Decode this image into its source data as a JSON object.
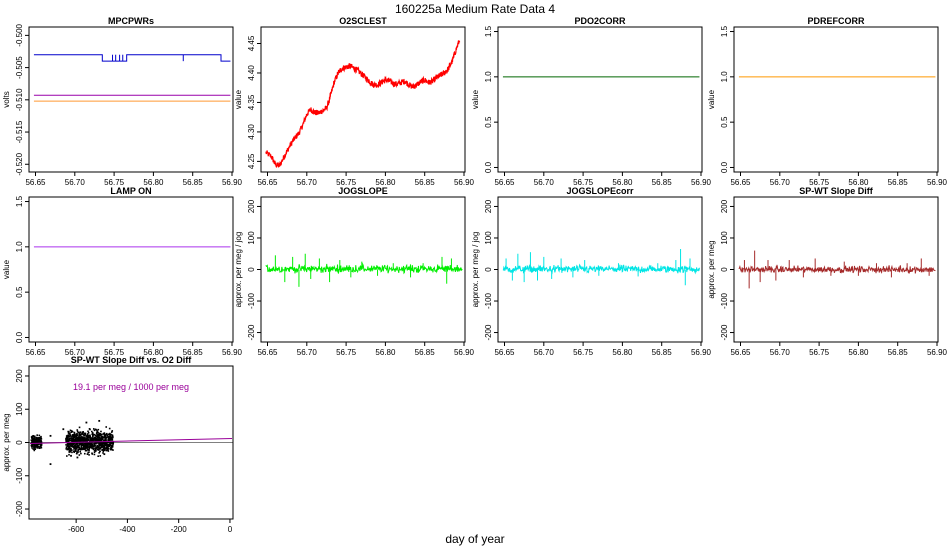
{
  "figure": {
    "title": "160225a   Medium Rate Data 4",
    "xlabel": "day of year"
  },
  "chart_data": [
    {
      "type": "line",
      "title": "MPCPWRs",
      "ylabel": "volts",
      "xlim": [
        56.643,
        56.9
      ],
      "ylim": [
        -0.5212,
        -0.4987
      ],
      "xticks": [
        "56.65",
        "56.70",
        "56.75",
        "56.80",
        "56.85",
        "56.90"
      ],
      "yticks": [
        "-0.500",
        "-0.505",
        "-0.510",
        "-0.515",
        "-0.520"
      ],
      "series": [
        {
          "color": "#0000cc",
          "kind": "step",
          "x": [
            56.648,
            56.735,
            56.735,
            56.766,
            56.766,
            56.886,
            56.886,
            56.898
          ],
          "y": [
            -0.503,
            -0.503,
            -0.504,
            -0.504,
            -0.503,
            -0.503,
            -0.504,
            -0.504
          ],
          "spikes_x": [
            56.748,
            56.752,
            56.757,
            56.761,
            56.838
          ]
        },
        {
          "color": "#9900aa",
          "x": [
            56.648,
            56.898
          ],
          "y": [
            -0.5093,
            -0.5093
          ]
        },
        {
          "color": "#ff9933",
          "x": [
            56.648,
            56.898
          ],
          "y": [
            -0.5102,
            -0.5102
          ]
        }
      ]
    },
    {
      "type": "line",
      "title": "O2SCLEST",
      "ylabel": "value",
      "xlim": [
        56.643,
        56.9
      ],
      "ylim": [
        4.232,
        4.478
      ],
      "xticks": [
        "56.65",
        "56.70",
        "56.75",
        "56.80",
        "56.85",
        "56.90"
      ],
      "yticks": [
        "4.25",
        "4.30",
        "4.35",
        "4.40",
        "4.45"
      ],
      "series": [
        {
          "color": "#ff0000",
          "kind": "noisy",
          "noise": 0.005,
          "x": [
            56.648,
            56.655,
            56.66,
            56.665,
            56.67,
            56.675,
            56.68,
            56.685,
            56.69,
            56.695,
            56.7,
            56.705,
            56.71,
            56.715,
            56.72,
            56.725,
            56.73,
            56.735,
            56.74,
            56.745,
            56.75,
            56.755,
            56.76,
            56.765,
            56.77,
            56.775,
            56.78,
            56.785,
            56.79,
            56.795,
            56.8,
            56.805,
            56.81,
            56.815,
            56.82,
            56.825,
            56.83,
            56.835,
            56.84,
            56.845,
            56.85,
            56.855,
            56.86,
            56.865,
            56.87,
            56.875,
            56.88,
            56.885,
            56.89,
            56.895
          ],
          "y": [
            4.265,
            4.258,
            4.245,
            4.242,
            4.255,
            4.268,
            4.28,
            4.29,
            4.298,
            4.312,
            4.33,
            4.338,
            4.333,
            4.332,
            4.336,
            4.34,
            4.36,
            4.385,
            4.4,
            4.408,
            4.41,
            4.412,
            4.408,
            4.404,
            4.398,
            4.392,
            4.385,
            4.38,
            4.38,
            4.384,
            4.388,
            4.387,
            4.382,
            4.381,
            4.384,
            4.386,
            4.38,
            4.376,
            4.38,
            4.385,
            4.388,
            4.384,
            4.386,
            4.392,
            4.396,
            4.4,
            4.407,
            4.42,
            4.44,
            4.458
          ]
        }
      ]
    },
    {
      "type": "line",
      "title": "PDO2CORR",
      "ylabel": "value",
      "xlim": [
        56.643,
        56.9
      ],
      "ylim": [
        -0.05,
        1.55
      ],
      "xticks": [
        "56.65",
        "56.70",
        "56.75",
        "56.80",
        "56.85",
        "56.90"
      ],
      "yticks": [
        "0.0",
        "0.5",
        "1.0",
        "1.5"
      ],
      "series": [
        {
          "color": "#006600",
          "x": [
            56.648,
            56.898
          ],
          "y": [
            1.0,
            1.0
          ]
        }
      ]
    },
    {
      "type": "line",
      "title": "PDREFCORR",
      "ylabel": "value",
      "xlim": [
        56.643,
        56.9
      ],
      "ylim": [
        -0.05,
        1.55
      ],
      "xticks": [
        "56.65",
        "56.70",
        "56.75",
        "56.80",
        "56.85",
        "56.90"
      ],
      "yticks": [
        "0.0",
        "0.5",
        "1.0",
        "1.5"
      ],
      "series": [
        {
          "color": "#ff9900",
          "x": [
            56.648,
            56.898
          ],
          "y": [
            1.0,
            1.0
          ]
        }
      ]
    },
    {
      "type": "line",
      "title": "LAMP ON",
      "ylabel": "value",
      "xlim": [
        56.643,
        56.9
      ],
      "ylim": [
        -0.05,
        1.55
      ],
      "xticks": [
        "56.65",
        "56.70",
        "56.75",
        "56.80",
        "56.85",
        "56.90"
      ],
      "yticks": [
        "0.0",
        "0.5",
        "1.0",
        "1.5"
      ],
      "series": [
        {
          "color": "#aa33ee",
          "x": [
            56.648,
            56.898
          ],
          "y": [
            1.0,
            1.0
          ]
        }
      ]
    },
    {
      "type": "line",
      "title": "JOGSLOPE",
      "ylabel": "approx. per meg / jog",
      "xlim": [
        56.643,
        56.9
      ],
      "ylim": [
        -230,
        230
      ],
      "xticks": [
        "56.65",
        "56.70",
        "56.75",
        "56.80",
        "56.85",
        "56.90"
      ],
      "yticks": [
        "-200",
        "-100",
        "0",
        "100",
        "200"
      ],
      "series": [
        {
          "color": "#00ee00",
          "kind": "noisy-zero",
          "noise": 6,
          "x": [
            56.648,
            56.898
          ],
          "y": [
            2,
            2
          ],
          "spikes": [
            [
              56.66,
              45
            ],
            [
              56.672,
              -40
            ],
            [
              56.682,
              40
            ],
            [
              56.69,
              -55
            ],
            [
              56.698,
              50
            ],
            [
              56.705,
              -30
            ],
            [
              56.716,
              35
            ],
            [
              56.729,
              -40
            ],
            [
              56.742,
              30
            ],
            [
              56.756,
              -25
            ],
            [
              56.77,
              25
            ],
            [
              56.79,
              -20
            ],
            [
              56.81,
              20
            ],
            [
              56.832,
              -25
            ],
            [
              56.848,
              20
            ],
            [
              56.872,
              40
            ],
            [
              56.878,
              -45
            ],
            [
              56.884,
              35
            ]
          ]
        }
      ]
    },
    {
      "type": "line",
      "title": "JOGSLOPEcorr",
      "ylabel": "approx. per meg / jog",
      "xlim": [
        56.643,
        56.9
      ],
      "ylim": [
        -230,
        230
      ],
      "xticks": [
        "56.65",
        "56.70",
        "56.75",
        "56.80",
        "56.85",
        "56.90"
      ],
      "yticks": [
        "-200",
        "-100",
        "0",
        "100",
        "200"
      ],
      "series": [
        {
          "color": "#00e5e5",
          "kind": "noisy-zero",
          "noise": 6,
          "x": [
            56.648,
            56.898
          ],
          "y": [
            1,
            1
          ],
          "spikes": [
            [
              56.652,
              35
            ],
            [
              56.66,
              -35
            ],
            [
              56.667,
              50
            ],
            [
              56.675,
              -40
            ],
            [
              56.683,
              55
            ],
            [
              56.692,
              -35
            ],
            [
              56.7,
              40
            ],
            [
              56.71,
              -30
            ],
            [
              56.722,
              35
            ],
            [
              56.737,
              -25
            ],
            [
              56.752,
              30
            ],
            [
              56.77,
              -20
            ],
            [
              56.795,
              20
            ],
            [
              56.82,
              -22
            ],
            [
              56.845,
              20
            ],
            [
              56.868,
              30
            ],
            [
              56.874,
              65
            ],
            [
              56.88,
              -50
            ],
            [
              56.886,
              35
            ]
          ]
        }
      ]
    },
    {
      "type": "line",
      "title": "SP-WT Slope Diff",
      "ylabel": "approx. per meg",
      "xlim": [
        56.643,
        56.9
      ],
      "ylim": [
        -230,
        230
      ],
      "xticks": [
        "56.65",
        "56.70",
        "56.75",
        "56.80",
        "56.85",
        "56.90"
      ],
      "yticks": [
        "-200",
        "-100",
        "0",
        "100",
        "200"
      ],
      "series": [
        {
          "color": "#a52a2a",
          "kind": "noisy-zero",
          "noise": 5,
          "x": [
            56.648,
            56.898
          ],
          "y": [
            0,
            0
          ],
          "spikes": [
            [
              56.655,
              30
            ],
            [
              56.661,
              -60
            ],
            [
              56.668,
              60
            ],
            [
              56.675,
              -40
            ],
            [
              56.685,
              30
            ],
            [
              56.695,
              -35
            ],
            [
              56.712,
              30
            ],
            [
              56.73,
              -25
            ],
            [
              56.745,
              35
            ],
            [
              56.765,
              -20
            ],
            [
              56.782,
              25
            ],
            [
              56.8,
              -20
            ],
            [
              56.823,
              20
            ],
            [
              56.842,
              -25
            ],
            [
              56.862,
              20
            ],
            [
              56.88,
              35
            ],
            [
              56.89,
              -20
            ]
          ]
        }
      ]
    },
    {
      "type": "scatter",
      "title": "SP-WT Slope Diff vs. O2 Diff",
      "ylabel": "approx. per meg",
      "annotation": "19.1 per meg / 1000 per meg",
      "annotation_color": "#990099",
      "xlim": [
        -780,
        8
      ],
      "ylim": [
        -230,
        230
      ],
      "xticks": [
        "-600",
        "-400",
        "-200",
        "0"
      ],
      "yticks": [
        "-200",
        "-100",
        "0",
        "100",
        "200"
      ],
      "scatter_groups": [
        {
          "color": "#000000",
          "x_range": [
            -775,
            -735
          ],
          "y_center": 0,
          "y_spread": 25,
          "count": 160
        },
        {
          "color": "#000000",
          "x_range": [
            -640,
            -455
          ],
          "y_center": 2,
          "y_spread": 35,
          "count": 900
        }
      ],
      "outliers": [
        [
          -700,
          -65
        ],
        [
          -595,
          -45
        ],
        [
          -560,
          60
        ],
        [
          -510,
          65
        ],
        [
          -490,
          -35
        ],
        [
          -650,
          40
        ],
        [
          -620,
          -40
        ],
        [
          -700,
          20
        ]
      ],
      "fit": {
        "color": "#990099",
        "slope": 0.0191,
        "intercept": 12,
        "x_range": [
          -780,
          8
        ]
      }
    }
  ]
}
